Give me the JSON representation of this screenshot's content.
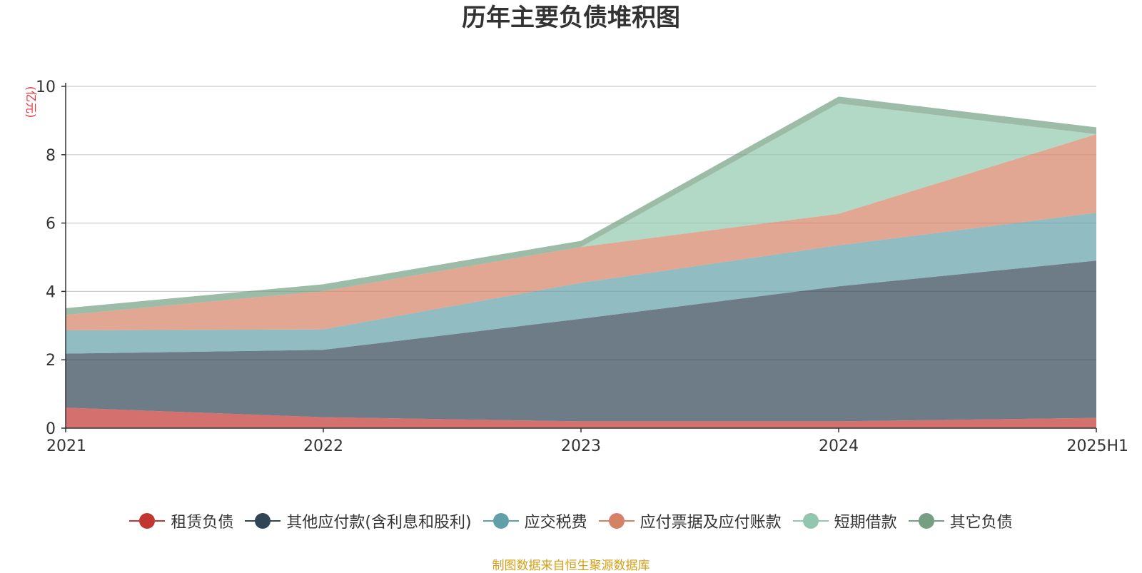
{
  "chart_data": {
    "type": "area",
    "stacked": true,
    "title": "历年主要负债堆积图",
    "ylabel": "(亿元)",
    "xlabel": "",
    "categories": [
      "2021",
      "2022",
      "2023",
      "2024",
      "2025H1"
    ],
    "ylim": [
      0,
      10
    ],
    "yticks": [
      0,
      2,
      4,
      6,
      8,
      10
    ],
    "grid": true,
    "legend_position": "bottom",
    "series": [
      {
        "name": "租赁负债",
        "values": [
          0.6,
          0.32,
          0.2,
          0.2,
          0.3
        ],
        "color": "#c23531"
      },
      {
        "name": "其他应付款(含利息和股利)",
        "values": [
          1.58,
          1.97,
          3.0,
          3.95,
          4.6
        ],
        "color": "#2f4554"
      },
      {
        "name": "应交税费",
        "values": [
          0.68,
          0.6,
          1.05,
          1.2,
          1.4
        ],
        "color": "#61a0a8"
      },
      {
        "name": "应付票据及应付账款",
        "values": [
          0.45,
          1.12,
          1.05,
          0.92,
          2.3
        ],
        "color": "#d48265"
      },
      {
        "name": "短期借款",
        "values": [
          0.0,
          0.0,
          0.0,
          3.23,
          0.0
        ],
        "color": "#91c7ae"
      },
      {
        "name": "其它负债",
        "values": [
          0.2,
          0.2,
          0.18,
          0.2,
          0.2
        ],
        "color": "#749f83"
      }
    ]
  },
  "source_note": "制图数据来自恒生聚源数据库"
}
